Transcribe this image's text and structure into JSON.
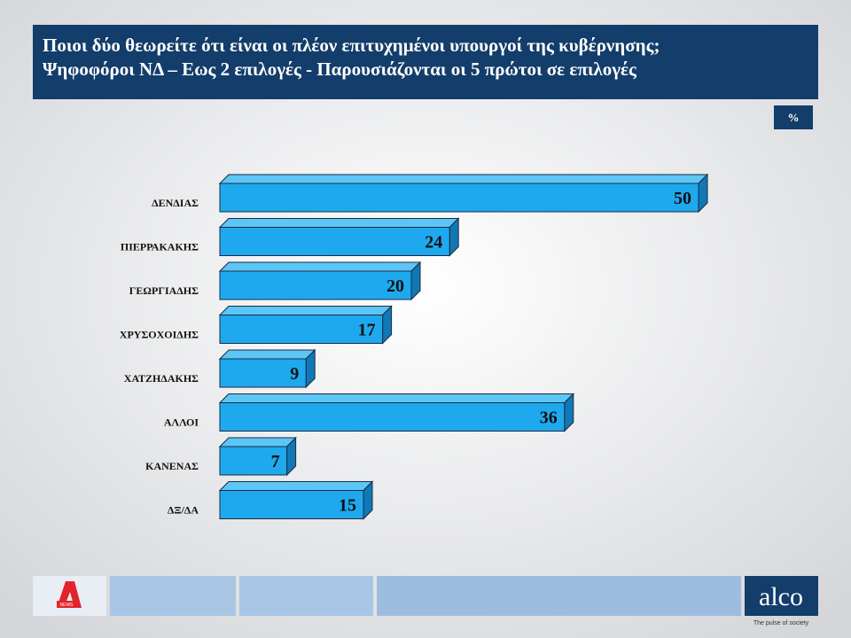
{
  "chart_data": {
    "type": "bar3d",
    "title": "Ποιοι δύο θεωρείτε ότι είναι οι πλέον επιτυχημένοι υπουργοί της κυβέρνησης;",
    "subtitle": "Ψηφοφόροι ΝΔ – Εως 2 επιλογές - Παρουσιάζονται οι 5 πρώτοι σε επιλογές",
    "unit": "%",
    "categories": [
      "ΔΕΝΔΙΑΣ",
      "ΠΙΕΡΡΑΚΑΚΗΣ",
      "ΓΕΩΡΓΙΑΔΗΣ",
      "ΧΡΥΣΟΧΟΙΔΗΣ",
      "ΧΑΤΖΗΔΑΚΗΣ",
      "ΑΛΛΟΙ",
      "ΚΑΝΕΝΑΣ",
      "ΔΞ/ΔΑ"
    ],
    "values": [
      50,
      24,
      20,
      17,
      9,
      36,
      7,
      15
    ],
    "color": "#1ea9ee"
  },
  "footer": {
    "logo_text": "NEWS",
    "brand": "alco",
    "tagline": "The pulse of society"
  }
}
